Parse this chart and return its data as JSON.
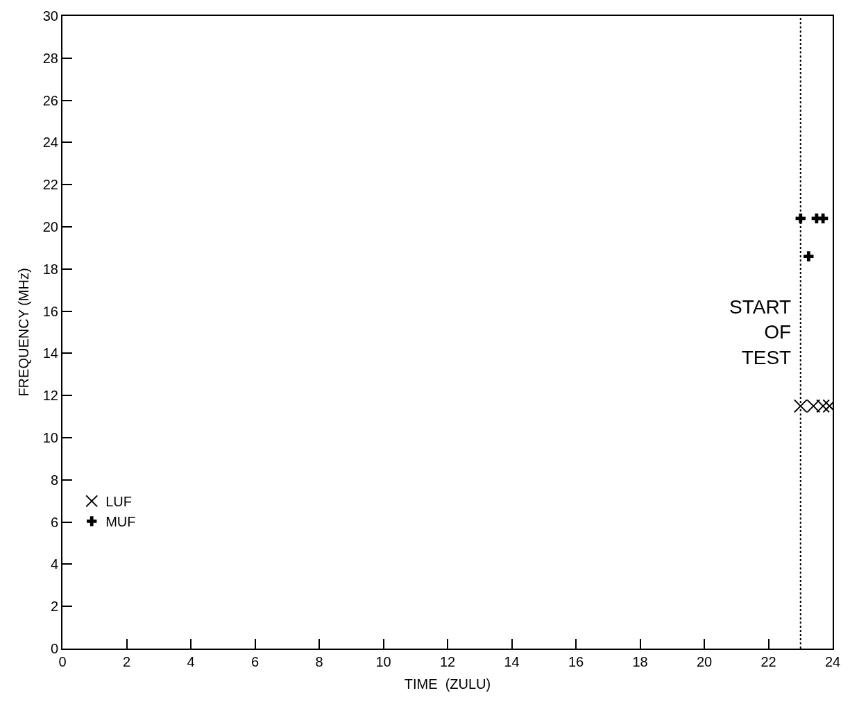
{
  "chart_data": {
    "type": "scatter",
    "xlabel": "TIME  (ZULU)",
    "ylabel": "FREQUENCY (MHz)",
    "xlim": [
      0,
      24
    ],
    "xticks": [
      0,
      2,
      4,
      6,
      8,
      10,
      12,
      14,
      16,
      18,
      20,
      22,
      24
    ],
    "ylim": [
      0,
      30
    ],
    "yticks": [
      0,
      2,
      4,
      6,
      8,
      10,
      12,
      14,
      16,
      18,
      20,
      22,
      24,
      26,
      28,
      30
    ],
    "legend": "bottom left",
    "series": [
      {
        "name": "LUF",
        "color": "#000000",
        "marker": "x",
        "x": [
          23.0,
          23.4,
          23.7,
          23.9
        ],
        "values": [
          11.5,
          11.5,
          11.5,
          11.5
        ]
      },
      {
        "name": "MUF",
        "color": "#000000",
        "marker": "cross",
        "x": [
          23.0,
          23.25,
          23.5,
          23.7
        ],
        "values": [
          20.4,
          18.6,
          20.4,
          20.4
        ]
      }
    ],
    "ref_lines": [
      {
        "axis": "x",
        "value": 23,
        "label": "START OF TEST",
        "color": "#000000",
        "line_style": "dotted"
      }
    ]
  }
}
